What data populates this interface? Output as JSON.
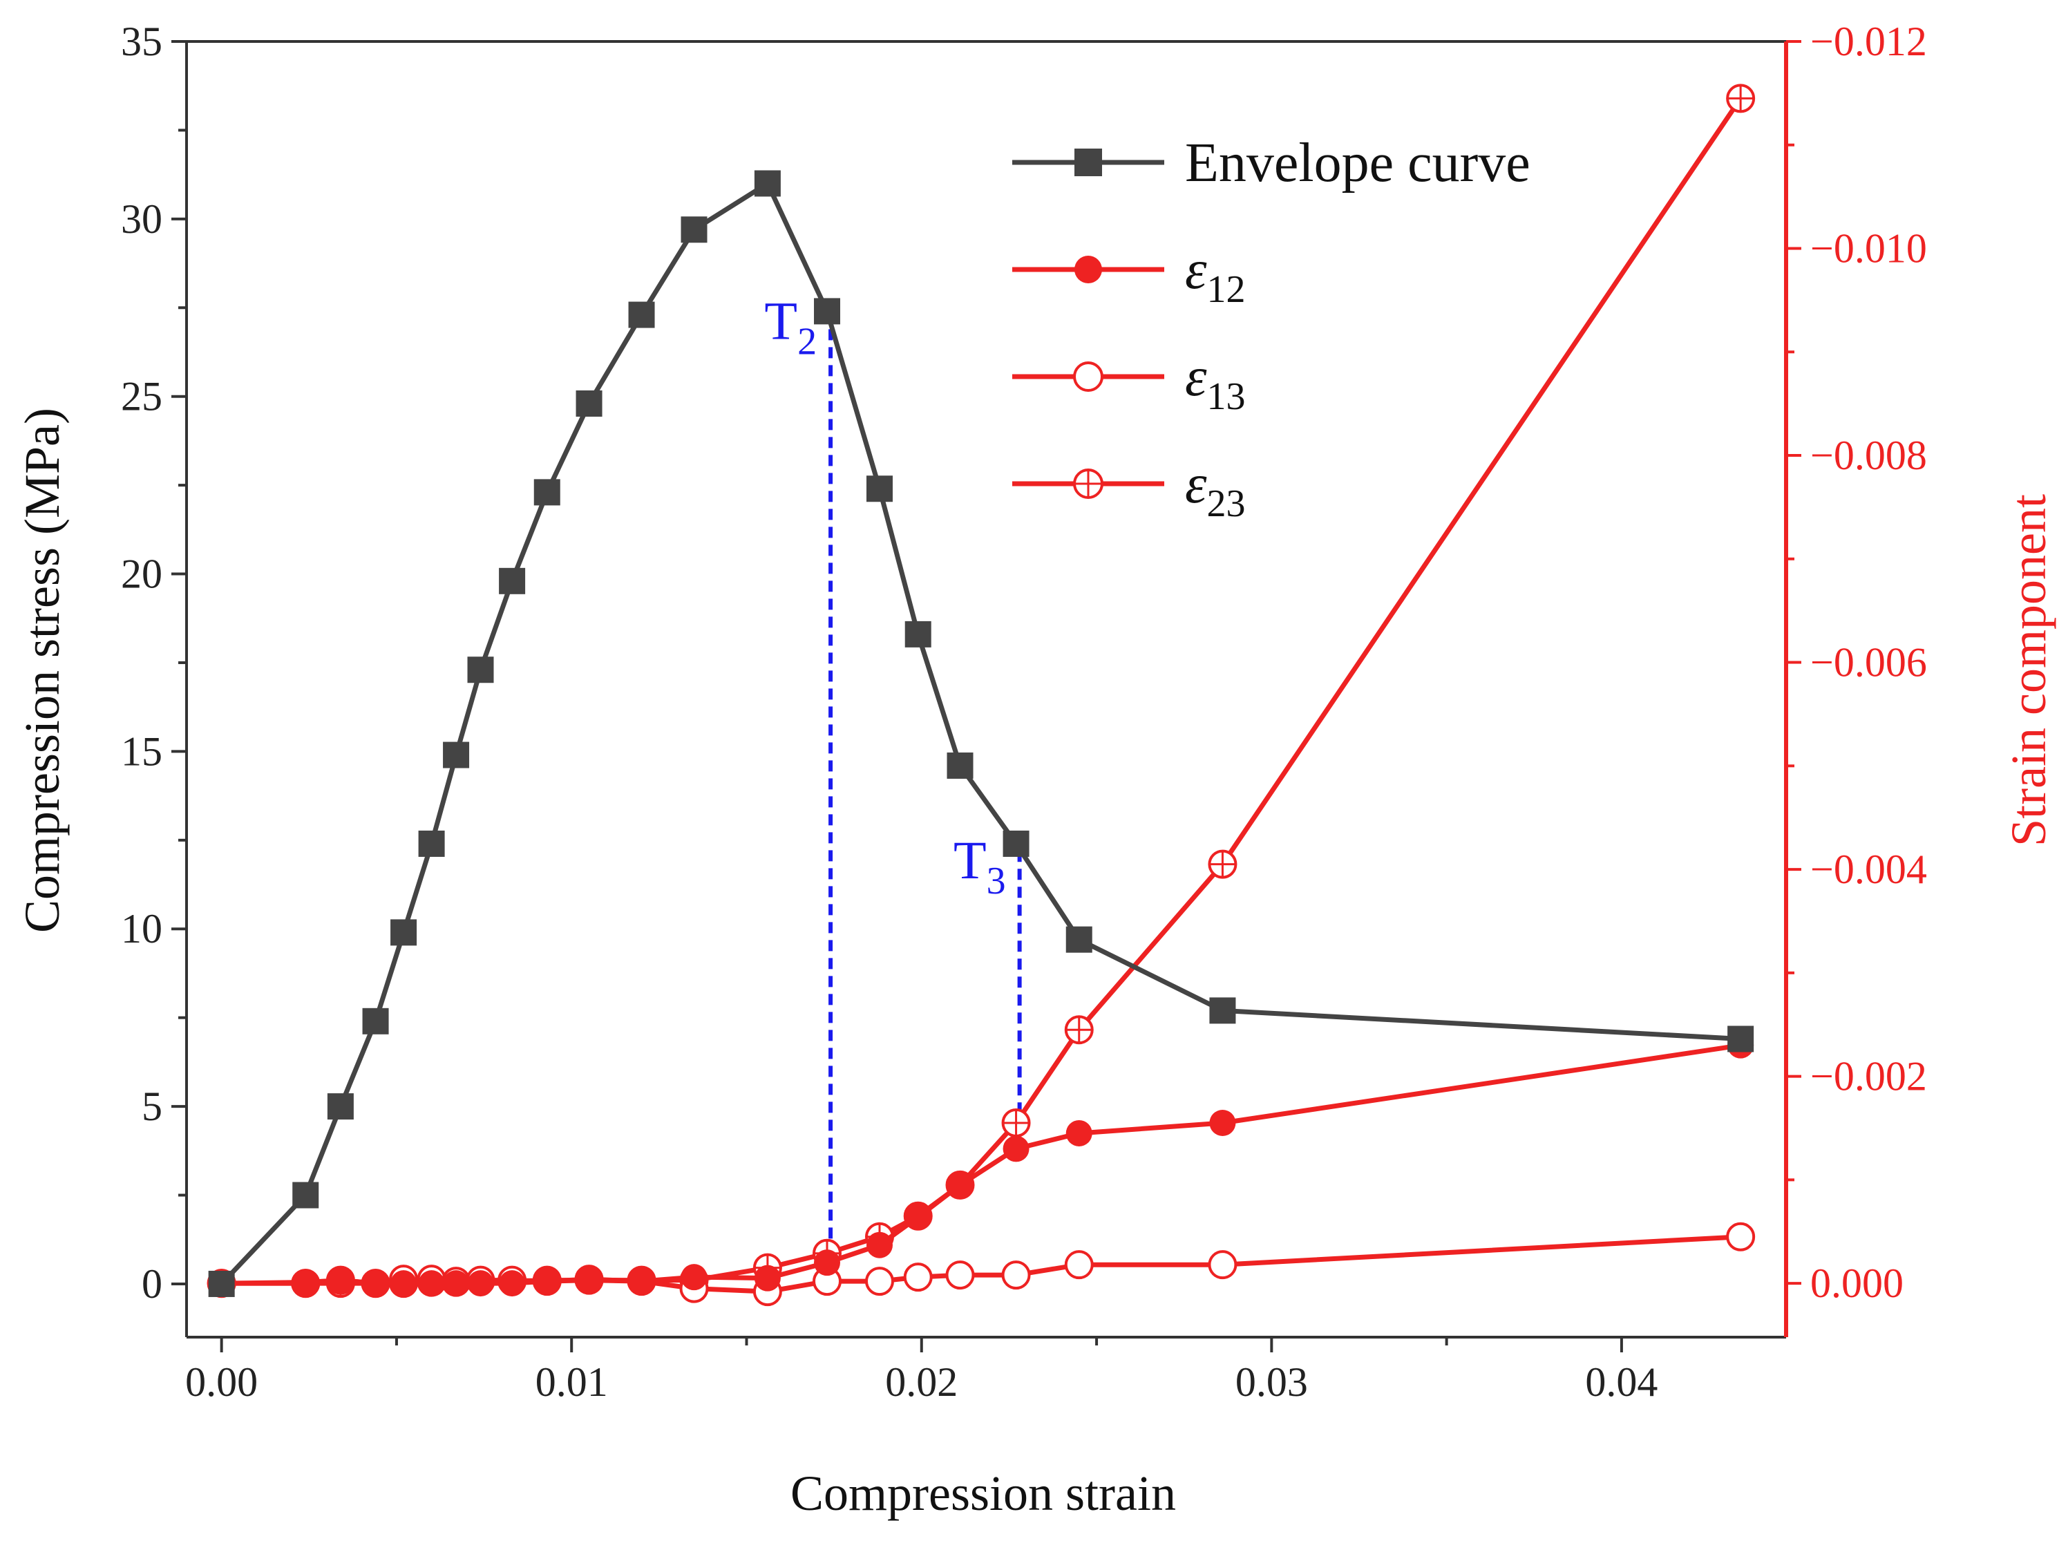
{
  "chart_data": {
    "type": "line",
    "x_axis": {
      "title": "Compression strain",
      "range": [
        -0.001,
        0.0447
      ],
      "ticks": [
        0.0,
        0.01,
        0.02,
        0.03,
        0.04
      ],
      "tick_labels": [
        "0.00",
        "0.01",
        "0.02",
        "0.03",
        "0.04"
      ]
    },
    "y_left_axis": {
      "title": "Compression stress (MPa)",
      "range": [
        -1.5,
        35
      ],
      "ticks": [
        0,
        5,
        10,
        15,
        20,
        25,
        30,
        35
      ],
      "tick_labels": [
        "0",
        "5",
        "10",
        "15",
        "20",
        "25",
        "30",
        "35"
      ]
    },
    "y_right_axis": {
      "title": "Strain component",
      "range": [
        0.00052,
        -0.012
      ],
      "ticks": [
        0,
        -0.002,
        -0.004,
        -0.006,
        -0.008,
        -0.01,
        -0.012
      ],
      "tick_labels": [
        "0.000",
        "−0.002",
        "−0.004",
        "−0.006",
        "−0.008",
        "−0.010",
        "−0.012"
      ],
      "color": "#ee2222"
    },
    "series": [
      {
        "name": "Envelope curve",
        "axis": "left",
        "marker": "square",
        "color": "#444444",
        "x": [
          0.0,
          0.0024,
          0.0034,
          0.0044,
          0.0052,
          0.006,
          0.0067,
          0.0074,
          0.0083,
          0.0093,
          0.0105,
          0.012,
          0.0135,
          0.0156,
          0.0173,
          0.0188,
          0.0199,
          0.0211,
          0.0227,
          0.0245,
          0.0286,
          0.0434
        ],
        "values": [
          0,
          2.5,
          5.0,
          7.4,
          9.9,
          12.4,
          14.9,
          17.3,
          19.8,
          22.3,
          24.8,
          27.3,
          29.7,
          31.0,
          27.4,
          22.4,
          18.3,
          14.6,
          12.4,
          9.7,
          7.7,
          6.9
        ]
      },
      {
        "name": "ε12",
        "axis": "right",
        "marker": "filled-circle",
        "color": "#ee2222",
        "x": [
          0.0,
          0.0024,
          0.0034,
          0.0044,
          0.0052,
          0.006,
          0.0067,
          0.0074,
          0.0083,
          0.0093,
          0.0105,
          0.012,
          0.0135,
          0.0156,
          0.0173,
          0.0188,
          0.0199,
          0.0211,
          0.0227,
          0.0245,
          0.0286,
          0.0434
        ],
        "values": [
          0.0,
          -1e-05,
          -3e-05,
          0.0,
          0.0,
          0.0,
          0.0,
          0.0,
          0.0,
          -2e-05,
          -3e-05,
          -2e-05,
          -6e-05,
          -5e-05,
          -0.0002,
          -0.00037,
          -0.00064,
          -0.00095,
          -0.0013,
          -0.00145,
          -0.00155,
          -0.0023
        ]
      },
      {
        "name": "ε13",
        "axis": "right",
        "marker": "open-circle",
        "color": "#ee2222",
        "x": [
          0.0,
          0.0024,
          0.0034,
          0.0044,
          0.0052,
          0.006,
          0.0067,
          0.0074,
          0.0083,
          0.0093,
          0.0105,
          0.012,
          0.0135,
          0.0156,
          0.0173,
          0.0188,
          0.0199,
          0.0211,
          0.0227,
          0.0245,
          0.0286,
          0.0434
        ],
        "values": [
          0.0,
          0.0,
          -3e-05,
          0.0,
          -4e-05,
          -4e-05,
          -2e-05,
          -3e-05,
          -3e-05,
          -2e-05,
          -4e-05,
          -2e-05,
          5e-05,
          8e-05,
          -2e-05,
          -2e-05,
          -6e-05,
          -8e-05,
          -8e-05,
          -0.00018,
          -0.00018,
          -0.00045
        ]
      },
      {
        "name": "ε23",
        "axis": "right",
        "marker": "circle-plus",
        "color": "#ee2222",
        "x": [
          0.0,
          0.0024,
          0.0034,
          0.0044,
          0.0052,
          0.006,
          0.0067,
          0.0074,
          0.0083,
          0.0093,
          0.0105,
          0.012,
          0.0135,
          0.0156,
          0.0173,
          0.0188,
          0.0199,
          0.0211,
          0.0227,
          0.0245,
          0.0286,
          0.0434
        ],
        "values": [
          0.0,
          0.0,
          0.0,
          0.0,
          0.0,
          -1e-05,
          -1e-05,
          -2e-05,
          -2e-05,
          -3e-05,
          -3e-05,
          -3e-05,
          -3e-05,
          -0.00015,
          -0.00029,
          -0.00045,
          -0.00065,
          -0.00095,
          -0.00155,
          -0.00245,
          -0.00405,
          -0.01145
        ]
      }
    ],
    "annotations": [
      {
        "label": "T",
        "sub": "2",
        "x": 0.0174,
        "y_top": 27.4,
        "y_bottom": 0.5,
        "color": "#1a1aee"
      },
      {
        "label": "T",
        "sub": "3",
        "x": 0.0228,
        "y_top": 12.2,
        "y_bottom": 4.6,
        "color": "#1a1aee"
      }
    ],
    "legend": {
      "position": "top-right",
      "entries": [
        {
          "label": "Envelope curve",
          "sub": ""
        },
        {
          "label": "ε",
          "sub": "12"
        },
        {
          "label": "ε",
          "sub": "13"
        },
        {
          "label": "ε",
          "sub": "23"
        }
      ]
    }
  }
}
